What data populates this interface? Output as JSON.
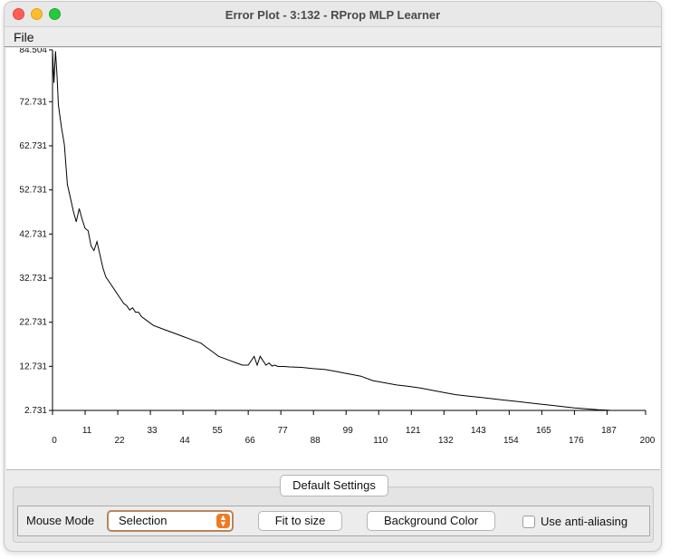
{
  "window": {
    "title": "Error Plot - 3:132 - RProp MLP Learner"
  },
  "menubar": {
    "file_label": "File"
  },
  "chart_data": {
    "type": "line",
    "title": "",
    "xlabel": "",
    "ylabel": "",
    "xlim": [
      0,
      200
    ],
    "ylim": [
      2.731,
      84.504
    ],
    "x_ticks": [
      "0",
      "11",
      "22",
      "33",
      "44",
      "55",
      "66",
      "77",
      "88",
      "99",
      "110",
      "121",
      "132",
      "143",
      "154",
      "165",
      "176",
      "187",
      "200"
    ],
    "y_ticks": [
      "84.504",
      "72.731",
      "62.731",
      "52.731",
      "42.731",
      "32.731",
      "22.731",
      "12.731",
      "2.731"
    ],
    "series": [
      {
        "x": [
          0,
          0.5,
          1,
          1.5,
          2,
          3,
          4,
          5,
          6,
          7,
          8,
          9,
          10,
          11,
          12,
          13,
          14,
          15,
          16,
          17,
          18,
          19,
          20,
          21,
          22,
          23,
          24,
          25,
          26,
          27,
          28,
          29,
          30,
          32,
          34,
          36,
          38,
          40,
          42,
          44,
          46,
          48,
          50,
          52,
          54,
          56,
          58,
          60,
          62,
          64,
          66,
          68,
          69,
          70,
          71,
          72,
          73,
          74,
          75,
          76,
          78,
          80,
          84,
          88,
          92,
          96,
          100,
          104,
          108,
          112,
          116,
          120,
          124,
          128,
          132,
          136,
          140,
          144,
          148,
          152,
          156,
          160,
          164,
          168,
          172,
          176,
          180,
          184,
          188,
          190
        ],
        "y": [
          84.5,
          77,
          84.2,
          79,
          72,
          67,
          63,
          54,
          51,
          48,
          45.5,
          48.5,
          46,
          44,
          43.5,
          40,
          39,
          41,
          38,
          35,
          33,
          32,
          31,
          30,
          29,
          28,
          27,
          26.5,
          25.5,
          26,
          25,
          25,
          24,
          23,
          22,
          21.5,
          21,
          20.5,
          20,
          19.5,
          19,
          18.5,
          18,
          17,
          16,
          15,
          14.5,
          14,
          13.5,
          13,
          13,
          15,
          13,
          15,
          14,
          13,
          13.5,
          12.8,
          13,
          12.7,
          12.7,
          12.6,
          12.5,
          12.2,
          12,
          11.5,
          11,
          10.5,
          9.5,
          9,
          8.5,
          8.2,
          7.8,
          7.3,
          6.8,
          6.3,
          6,
          5.7,
          5.4,
          5.1,
          4.8,
          4.5,
          4.2,
          3.9,
          3.6,
          3.3,
          3.1,
          2.9,
          2.75,
          2.73
        ]
      }
    ],
    "line_color": "#000000",
    "background": "#ffffff",
    "grid": false
  },
  "controls": {
    "tab_label": "Default Settings",
    "mouse_mode_label": "Mouse Mode",
    "mouse_mode_value": "Selection",
    "fit_button_label": "Fit to size",
    "background_button_label": "Background Color",
    "antialias_label": "Use anti-aliasing",
    "antialias_checked": false,
    "accent_color": "#f07a22"
  }
}
